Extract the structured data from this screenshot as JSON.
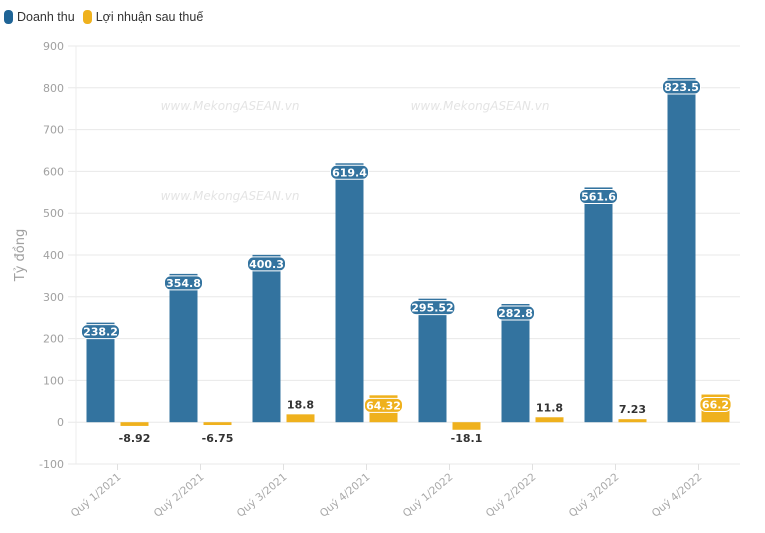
{
  "chart_data": {
    "type": "bar",
    "title": "",
    "xlabel": "",
    "ylabel": "Tỷ đồng",
    "ylim": [
      -100,
      900
    ],
    "yticks": [
      -100,
      0,
      100,
      200,
      300,
      400,
      500,
      600,
      700,
      800,
      900
    ],
    "grid": true,
    "legend_position": "top-left",
    "watermark": "www.MekongASEAN.vn",
    "categories": [
      "Quý 1/2021",
      "Quý 2/2021",
      "Quý 3/2021",
      "Quý 4/2021",
      "Quý 1/2022",
      "Quý 2/2022",
      "Quý 3/2022",
      "Quý 4/2022"
    ],
    "series": [
      {
        "name": "Doanh thu",
        "color": "#33739f",
        "values": [
          238.2,
          354.8,
          400.3,
          619.4,
          295.52,
          282.8,
          561.6,
          823.5
        ],
        "labels": [
          "238.2",
          "354.8",
          "400.3",
          "619.4",
          "295.52",
          "282.8",
          "561.6",
          "823.5"
        ]
      },
      {
        "name": "Lợi nhuận sau thuế",
        "color": "#efb11d",
        "values": [
          -8.92,
          -6.75,
          18.8,
          64.32,
          -18.1,
          11.8,
          7.23,
          66.2
        ],
        "labels": [
          "-8.92",
          "-6.75",
          "18.8",
          "64.32",
          "-18.1",
          "11.8",
          "7.23",
          "66.2"
        ]
      }
    ]
  }
}
